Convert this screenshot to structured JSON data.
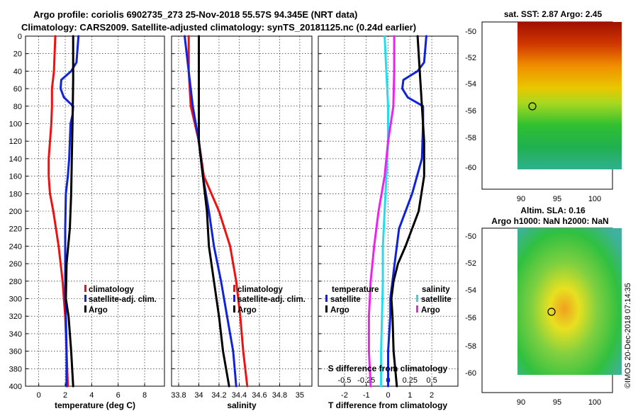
{
  "header": {
    "title_line1": "Argo profile: coriolis 6902735_273 25-Nov-2018 55.57S 94.345E (NRT data)",
    "title_line2": "Climatology: CARS2009. Satellite-adjusted climatology: synTS_20181125.nc (0.24d earlier)"
  },
  "colors": {
    "climatology": "#ee1111",
    "satellite": "#1122dd",
    "argo": "#000000",
    "satellite_salinity": "#22ddee",
    "argo_salinity_diff": "#ee22ee"
  },
  "depth_axis": {
    "range": [
      0,
      400
    ],
    "ticks": [
      0,
      20,
      40,
      60,
      80,
      100,
      120,
      140,
      160,
      180,
      200,
      220,
      240,
      260,
      280,
      300,
      320,
      340,
      360,
      380,
      400
    ]
  },
  "chart_data": [
    {
      "type": "line",
      "name": "temperature",
      "xlabel": "temperature (deg C)",
      "xlim": [
        -1,
        9.5
      ],
      "ylim": [
        400,
        0
      ],
      "xticks": [
        0,
        2,
        4,
        6,
        8
      ],
      "xtick_labels": [
        "0",
        "2",
        "4",
        "6",
        "8"
      ],
      "legend": [
        "climatology",
        "satellite-adj. clim.",
        "Argo"
      ],
      "series": [
        {
          "name": "climatology",
          "color_key": "climatology",
          "depth": [
            0,
            40,
            60,
            80,
            100,
            140,
            160,
            180,
            200,
            240,
            280,
            300,
            320,
            400
          ],
          "values": [
            1.25,
            1.15,
            1.0,
            1.0,
            0.95,
            0.75,
            0.75,
            0.85,
            1.1,
            1.5,
            1.8,
            1.9,
            2.0,
            2.2
          ]
        },
        {
          "name": "satellite-adj. clim.",
          "color_key": "satellite",
          "depth": [
            0,
            30,
            40,
            50,
            60,
            70,
            80,
            90,
            100,
            140,
            160,
            180,
            220,
            260,
            300,
            320,
            360,
            400
          ],
          "values": [
            3.0,
            2.85,
            2.45,
            1.7,
            1.65,
            1.9,
            2.6,
            2.55,
            2.4,
            2.3,
            2.2,
            2.05,
            2.0,
            2.0,
            2.0,
            2.05,
            2.1,
            2.1
          ]
        },
        {
          "name": "Argo",
          "color_key": "argo",
          "depth": [
            0,
            50,
            100,
            140,
            180,
            220,
            260,
            300,
            320,
            360,
            400
          ],
          "values": [
            2.6,
            2.6,
            2.55,
            2.5,
            2.45,
            2.35,
            2.1,
            2.05,
            2.25,
            2.45,
            2.6
          ]
        }
      ]
    },
    {
      "type": "line",
      "name": "salinity",
      "xlabel": "salinity",
      "xlim": [
        33.73,
        35.12
      ],
      "ylim": [
        400,
        0
      ],
      "xticks": [
        33.8,
        34,
        34.2,
        34.4,
        34.6,
        34.8,
        35
      ],
      "xtick_labels": [
        "33.8",
        "34",
        "34.2",
        "34.4",
        "34.6",
        "34.8",
        "35"
      ],
      "legend": [
        "climatology",
        "satellite-adj. clim.",
        "Argo"
      ],
      "series": [
        {
          "name": "climatology",
          "color_key": "climatology",
          "depth": [
            0,
            40,
            80,
            120,
            160,
            200,
            240,
            280,
            320,
            360,
            400
          ],
          "values": [
            33.9,
            33.9,
            33.92,
            34.0,
            34.05,
            34.2,
            34.31,
            34.37,
            34.41,
            34.44,
            34.48
          ]
        },
        {
          "name": "satellite-adj. clim.",
          "color_key": "satellite",
          "depth": [
            0,
            40,
            80,
            120,
            160,
            200,
            240,
            280,
            320,
            360,
            400
          ],
          "values": [
            33.86,
            33.9,
            33.94,
            34.0,
            34.04,
            34.1,
            34.15,
            34.22,
            34.28,
            34.34,
            34.37
          ]
        },
        {
          "name": "Argo",
          "color_key": "argo",
          "depth": [
            0,
            40,
            80,
            120,
            160,
            200,
            240,
            280,
            320,
            360,
            400
          ],
          "values": [
            34.0,
            34.0,
            34.0,
            34.0,
            34.04,
            34.08,
            34.1,
            34.15,
            34.2,
            34.24,
            34.3
          ]
        }
      ]
    },
    {
      "type": "line",
      "name": "differences",
      "xlabel": "T difference from climatology",
      "xlim": [
        -3.2,
        3.2
      ],
      "ylim": [
        400,
        0
      ],
      "xticks": [
        -2,
        -1,
        0,
        1,
        2
      ],
      "xtick_labels": [
        "-2",
        "-1",
        "0",
        "1",
        "2"
      ],
      "top_label": "S difference from climatology",
      "top_ticks": [
        -0.5,
        -0.25,
        0,
        0.25,
        0.5
      ],
      "top_tick_labels": [
        "-0.5",
        "-0.25",
        "0",
        "0.25",
        "0.5"
      ],
      "legend_temperature_title": "temperature",
      "legend_salinity_title": "salinity",
      "legend_temperature": [
        "satellite",
        "Argo"
      ],
      "legend_salinity": [
        "satellite",
        "Argo"
      ],
      "series": [
        {
          "name": "temperature satellite",
          "color_key": "satellite",
          "depth": [
            0,
            30,
            40,
            50,
            60,
            70,
            80,
            100,
            140,
            180,
            220,
            260,
            300,
            320,
            360,
            400
          ],
          "values": [
            1.75,
            1.65,
            1.35,
            0.7,
            0.65,
            0.9,
            1.6,
            1.6,
            1.55,
            1.1,
            0.5,
            0.3,
            0.1,
            0.1,
            0.0,
            0.0
          ]
        },
        {
          "name": "temperature Argo",
          "color_key": "argo",
          "depth": [
            0,
            40,
            80,
            120,
            160,
            200,
            240,
            260,
            280,
            300,
            320,
            360,
            400
          ],
          "values": [
            1.35,
            1.45,
            1.55,
            1.65,
            1.65,
            1.4,
            0.8,
            0.45,
            0.25,
            0.15,
            0.2,
            0.25,
            0.4
          ]
        },
        {
          "name": "salinity satellite",
          "color_key": "satellite_salinity",
          "depth": [
            0,
            40,
            80,
            120,
            160,
            200,
            240,
            280,
            320,
            360,
            400
          ],
          "values": [
            -0.04,
            -0.02,
            0.0,
            0.0,
            -0.02,
            -0.04,
            -0.06,
            -0.06,
            -0.07,
            -0.08,
            -0.08
          ]
        },
        {
          "name": "salinity Argo",
          "color_key": "argo_salinity_diff",
          "depth": [
            0,
            40,
            80,
            120,
            160,
            200,
            240,
            280,
            320,
            360,
            400
          ],
          "values": [
            0.07,
            0.07,
            0.06,
            0.0,
            -0.04,
            -0.11,
            -0.16,
            -0.2,
            -0.22,
            -0.22,
            -0.2
          ]
        }
      ]
    }
  ],
  "maps": [
    {
      "name": "sst",
      "title": "sat. SST: 2.87 Argo: 2.45",
      "title_line2": "",
      "xticks": [
        "90",
        "95",
        "100"
      ],
      "yticks": [
        "-50",
        "-52",
        "-54",
        "-56",
        "-58",
        "-60"
      ]
    },
    {
      "name": "sla",
      "title": "Altim. SLA: 0.16",
      "title_line2": "Argo h1000: NaN h2000: NaN",
      "xticks": [
        "90",
        "95",
        "100"
      ],
      "yticks": [
        "-50",
        "-52",
        "-54",
        "-56",
        "-58",
        "-60"
      ]
    }
  ],
  "watermark": "©IMOS 20-Dec-2018 07:14:35"
}
